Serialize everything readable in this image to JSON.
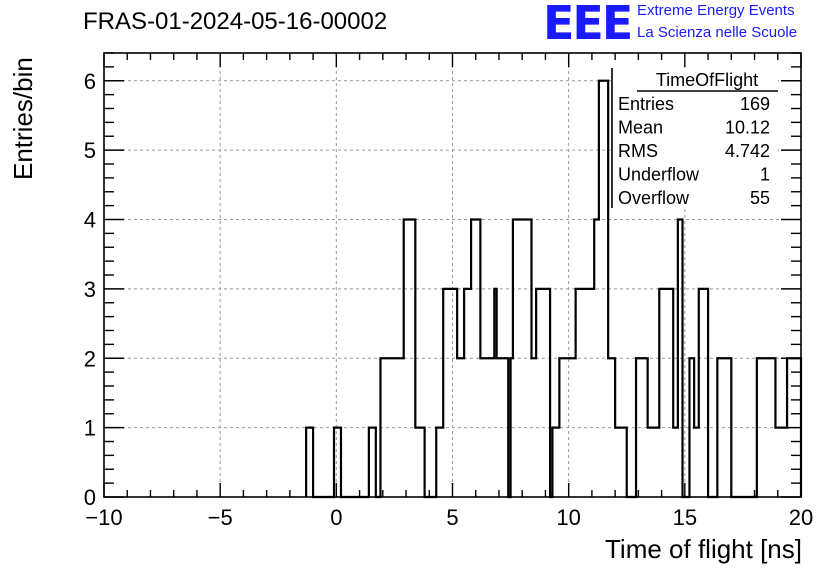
{
  "header": {
    "run_title": "FRAS-01-2024-05-16-00002",
    "logo_text": "EEE",
    "logo_line1": "Extreme Energy Events",
    "logo_line2": "La Scienza nelle Scuole",
    "logo_color": "#1a1aff"
  },
  "stats_box": {
    "title": "TimeOfFlight",
    "rows": [
      {
        "label": "Entries",
        "value": "169"
      },
      {
        "label": "Mean",
        "value": "10.12"
      },
      {
        "label": "RMS",
        "value": "4.742"
      },
      {
        "label": "Underflow",
        "value": "1"
      },
      {
        "label": "Overflow",
        "value": "55"
      }
    ]
  },
  "chart_data": {
    "type": "bar",
    "histogram": "step",
    "title": "",
    "xlabel": "Time of flight [ns]",
    "ylabel": "Entries/bin",
    "xlim": [
      -10,
      20
    ],
    "ylim": [
      0,
      6.4
    ],
    "bin_width": 0.3,
    "x_ticks": [
      -10,
      -5,
      0,
      5,
      10,
      15,
      20
    ],
    "x_tick_labels": [
      "−10",
      "−5",
      "0",
      "5",
      "10",
      "15",
      "20"
    ],
    "y_ticks": [
      0,
      1,
      2,
      3,
      4,
      5,
      6
    ],
    "y_tick_labels": [
      "0",
      "1",
      "2",
      "3",
      "4",
      "5",
      "6"
    ],
    "grid": true,
    "line_color": "#000000",
    "bin_edges": [
      -1.3,
      -1.0,
      -0.1,
      0.2,
      1.4,
      1.7,
      1.9,
      2.1,
      2.9,
      3.4,
      3.8,
      4.3,
      4.6,
      5.2,
      5.5,
      5.8,
      6.2,
      6.8,
      6.9,
      7.1,
      7.4,
      7.5,
      7.6,
      8.0,
      8.4,
      8.6,
      9.2,
      9.3,
      9.6,
      10.3,
      11.1,
      11.3,
      11.7,
      12.0,
      12.5,
      12.9,
      13.4,
      13.6,
      13.9,
      14.5,
      14.7,
      14.9,
      15.2,
      15.4,
      15.6,
      16.0,
      16.4,
      17.0,
      18.1,
      18.9,
      19.4,
      20.0
    ],
    "counts": [
      1,
      0,
      1,
      0,
      1,
      0,
      2,
      2,
      4,
      1,
      0,
      1,
      3,
      2,
      3,
      4,
      2,
      3,
      2,
      2,
      0,
      2,
      4,
      4,
      2,
      3,
      0,
      1,
      2,
      3,
      4,
      6,
      2,
      1,
      0,
      2,
      1,
      1,
      3,
      1,
      4,
      0,
      2,
      1,
      3,
      0,
      2,
      0,
      2,
      1,
      2
    ]
  }
}
